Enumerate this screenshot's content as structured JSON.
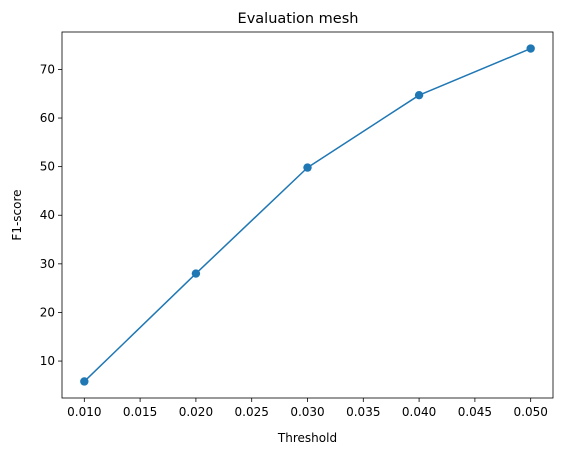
{
  "chart_data": {
    "type": "line",
    "title": "Evaluation mesh",
    "xlabel": "Threshold",
    "ylabel": "F1-score",
    "x": [
      0.01,
      0.02,
      0.03,
      0.04,
      0.05
    ],
    "series": [
      {
        "values": [
          5.8,
          28.0,
          49.8,
          64.7,
          74.3
        ],
        "color": "#1f77b4",
        "marker": "circle"
      }
    ],
    "xlim": [
      0.008,
      0.052
    ],
    "ylim": [
      2.4,
      77.7
    ],
    "xticks": [
      0.01,
      0.015,
      0.02,
      0.025,
      0.03,
      0.035,
      0.04,
      0.045,
      0.05
    ],
    "xtick_labels": [
      "0.010",
      "0.015",
      "0.020",
      "0.025",
      "0.030",
      "0.035",
      "0.040",
      "0.045",
      "0.050"
    ],
    "yticks": [
      10,
      20,
      30,
      40,
      50,
      60,
      70
    ],
    "ytick_labels": [
      "10",
      "20",
      "30",
      "40",
      "50",
      "60",
      "70"
    ],
    "grid": false,
    "legend": "none"
  }
}
